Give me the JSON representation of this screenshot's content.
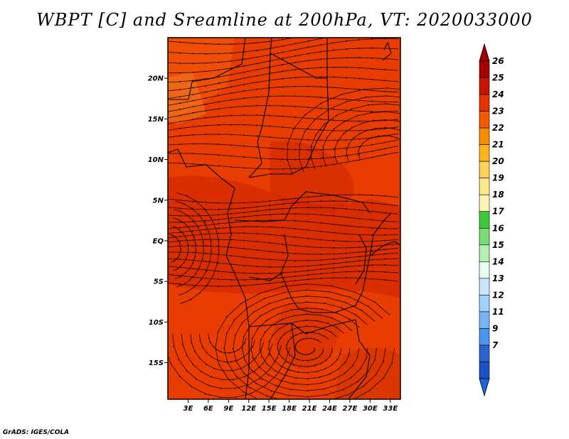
{
  "title": "WBPT [C] and Sreamline at 200hPa, VT: 2020033000",
  "credit": "GrADS: IGES/COLA",
  "map": {
    "lat_labels": [
      "20N",
      "15N",
      "10N",
      "5N",
      "EQ",
      "5S",
      "10S",
      "15S"
    ],
    "lat_values": [
      20,
      15,
      10,
      5,
      0,
      -5,
      -10,
      -15
    ],
    "lon_labels": [
      "3E",
      "6E",
      "9E",
      "12E",
      "15E",
      "18E",
      "21E",
      "24E",
      "27E",
      "30E",
      "33E"
    ],
    "lon_values": [
      3,
      6,
      9,
      12,
      15,
      18,
      21,
      24,
      27,
      30,
      33
    ],
    "lat_range": [
      -19.5,
      25
    ],
    "lon_range": [
      0,
      34.5
    ]
  },
  "colorbar": {
    "labels": [
      "26",
      "25",
      "24",
      "23",
      "22",
      "21",
      "20",
      "19",
      "18",
      "17",
      "16",
      "15",
      "14",
      "13",
      "12",
      "11",
      "9",
      "7"
    ],
    "colors": [
      "#a50000",
      "#c81400",
      "#e63200",
      "#f55a00",
      "#fa8c00",
      "#fcb41e",
      "#fcd25a",
      "#fde68c",
      "#fef5b4",
      "#3cc83c",
      "#78dc78",
      "#b4f0b4",
      "#e6fff0",
      "#c8e6ff",
      "#a0d2ff",
      "#78b4f5",
      "#4b96eb",
      "#2864d2",
      "#1e50c8"
    ],
    "top_arrow_color": "#a00000",
    "bottom_arrow_color": "#1e64dc"
  }
}
